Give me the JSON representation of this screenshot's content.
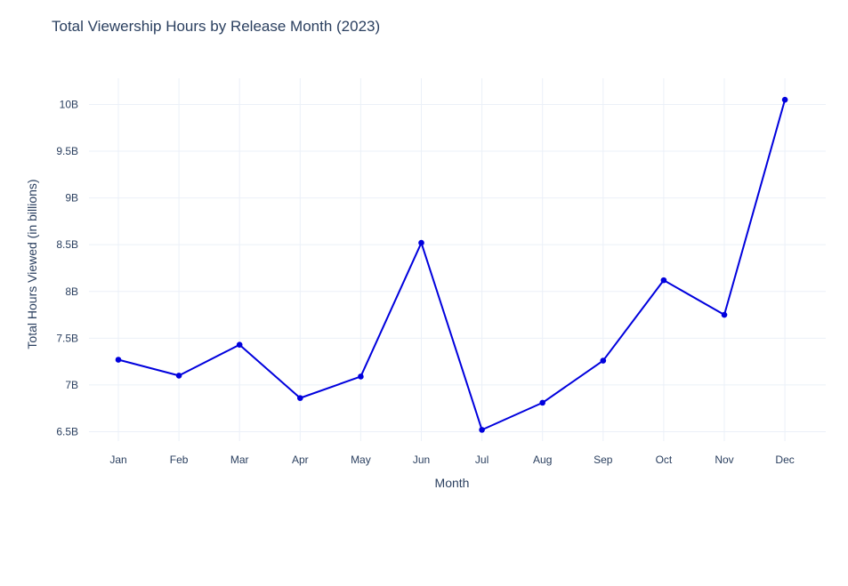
{
  "chart_data": {
    "type": "line",
    "title": "Total Viewership Hours by Release Month (2023)",
    "xlabel": "Month",
    "ylabel": "Total Hours Viewed (in billions)",
    "categories": [
      "Jan",
      "Feb",
      "Mar",
      "Apr",
      "May",
      "Jun",
      "Jul",
      "Aug",
      "Sep",
      "Oct",
      "Nov",
      "Dec"
    ],
    "series": [
      {
        "values": [
          7.27,
          7.1,
          7.43,
          6.86,
          7.09,
          8.52,
          6.52,
          6.81,
          7.26,
          8.12,
          7.75,
          10.05
        ]
      }
    ],
    "ylim": [
      6.4,
      10.28
    ],
    "yticks": [
      6.5,
      7,
      7.5,
      8,
      8.5,
      9,
      9.5,
      10
    ],
    "ytick_labels": [
      "6.5B",
      "7B",
      "7.5B",
      "8B",
      "8.5B",
      "9B",
      "9.5B",
      "10B"
    ],
    "grid": true,
    "legend": "none",
    "line_color": "#0000dd",
    "grid_color": "#ebf0f8",
    "text_color": "#2a3f5f"
  }
}
